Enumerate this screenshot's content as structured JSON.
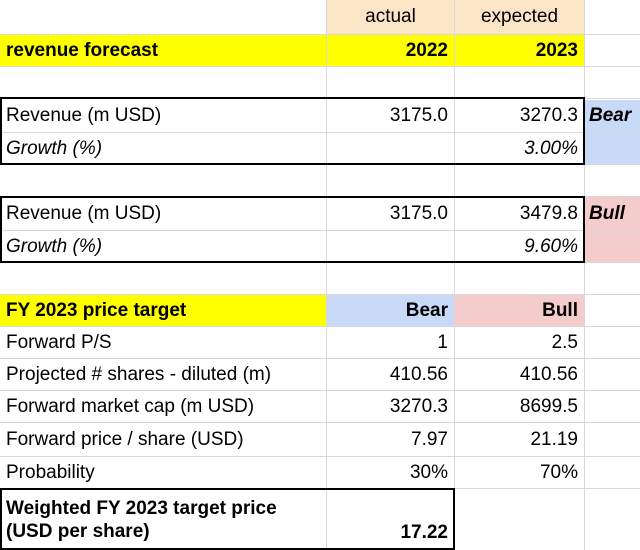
{
  "colors": {
    "peach_header": "#fbe5c7",
    "yellow": "#ffff00",
    "bear_blue": "#c9daf8",
    "bull_pink": "#f4cccc",
    "grid": "#d9d9d9"
  },
  "header": {
    "actual": "actual",
    "expected": "expected"
  },
  "forecast": {
    "label": "revenue forecast",
    "year_actual": "2022",
    "year_expected": "2023"
  },
  "bear": {
    "revenue_label": "Revenue (m USD)",
    "revenue_actual": "3175.0",
    "revenue_expected": "3270.3",
    "growth_label": "Growth (%)",
    "growth_expected": "3.00%",
    "tag": "Bear"
  },
  "bull": {
    "revenue_label": "Revenue (m USD)",
    "revenue_actual": "3175.0",
    "revenue_expected": "3479.8",
    "growth_label": "Growth (%)",
    "growth_expected": "9.60%",
    "tag": "Bull"
  },
  "target": {
    "label": "FY 2023 price target",
    "bear": "Bear",
    "bull": "Bull",
    "rows": [
      {
        "label": "Forward P/S",
        "bear": "1",
        "bull": "2.5"
      },
      {
        "label": "Projected # shares - diluted (m)",
        "bear": "410.56",
        "bull": "410.56"
      },
      {
        "label": "Forward market cap (m USD)",
        "bear": "3270.3",
        "bull": "8699.5"
      },
      {
        "label": "Forward price / share (USD)",
        "bear": "7.97",
        "bull": "21.19"
      },
      {
        "label": "Probability",
        "bear": "30%",
        "bull": "70%"
      }
    ],
    "weighted_label": "Weighted FY 2023 target price (USD per share)",
    "weighted_value": "17.22"
  }
}
